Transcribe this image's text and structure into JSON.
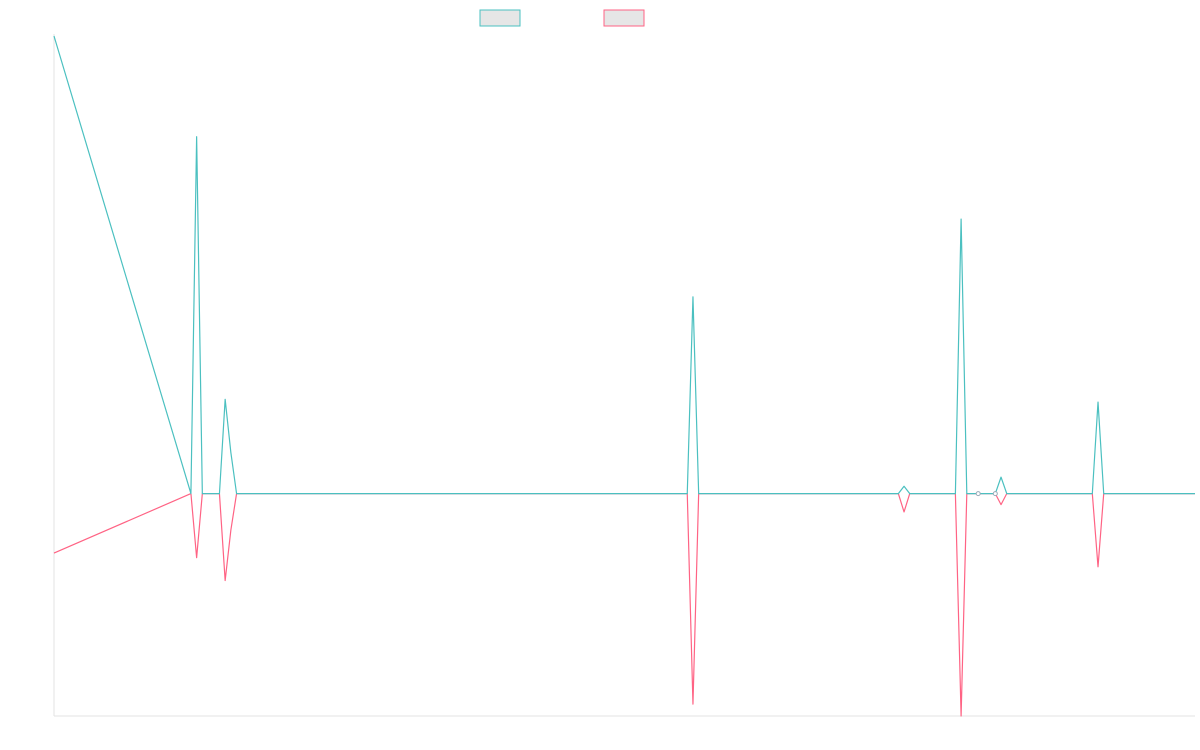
{
  "chart_data": {
    "type": "line",
    "title": "",
    "xlabel": "",
    "ylabel": "",
    "grid": false,
    "legend": {
      "placement": "top-center",
      "entries": [
        {
          "name": "",
          "color": "#4bc0c0"
        },
        {
          "name": "",
          "color": "#ff6384"
        }
      ]
    },
    "x": [
      0,
      24,
      25,
      26,
      29,
      30,
      31,
      32,
      33,
      34,
      35,
      36,
      39,
      40,
      41,
      42,
      43,
      44,
      45,
      46,
      77,
      78,
      79,
      80,
      81,
      82,
      83,
      84,
      85,
      86,
      87,
      88,
      89,
      90,
      91,
      92,
      93,
      94,
      95,
      96,
      97,
      98,
      99,
      100,
      101,
      102,
      103,
      104,
      105,
      106,
      107,
      108,
      109,
      110,
      111,
      112,
      113,
      114,
      115,
      116,
      117,
      118,
      119,
      120,
      121,
      122,
      123,
      124,
      125,
      126,
      127,
      128,
      129,
      130,
      131,
      132,
      133,
      134,
      135,
      136,
      137,
      138,
      139,
      140,
      141,
      142,
      143,
      144,
      145,
      146,
      147,
      148,
      149,
      150,
      151,
      152,
      153,
      154,
      155,
      156,
      157,
      158,
      159,
      160,
      161,
      162,
      163,
      164,
      165,
      166,
      167,
      168,
      169,
      170,
      171,
      172,
      173,
      174,
      175,
      176,
      177,
      178,
      179,
      180,
      181,
      182,
      183,
      184,
      185,
      186,
      187,
      188,
      189,
      190,
      191,
      192,
      193,
      194,
      195,
      196,
      197,
      198,
      199,
      200
    ],
    "xlim": [
      0,
      200
    ],
    "ylim": [
      -24.3,
      50
    ],
    "series": [
      {
        "color": "#4bc0c0"
      },
      {
        "color": "#ff6384"
      }
    ],
    "spikes": [
      {
        "x": 0,
        "a": 50,
        "b": -6.5
      },
      {
        "x": 25,
        "a": 39,
        "b": -7
      },
      {
        "x": 30,
        "a": 10.3,
        "b": -9.5
      },
      {
        "x": 31,
        "a": 4.5,
        "b": -4
      },
      {
        "x": 112,
        "a": 21.5,
        "b": -23
      },
      {
        "x": 149,
        "a": 0.8,
        "b": -2
      },
      {
        "x": 159,
        "a": 30,
        "b": -24.3
      },
      {
        "x": 166,
        "a": 1.8,
        "b": -1.2
      },
      {
        "x": 183,
        "a": 10,
        "b": -8
      }
    ]
  }
}
